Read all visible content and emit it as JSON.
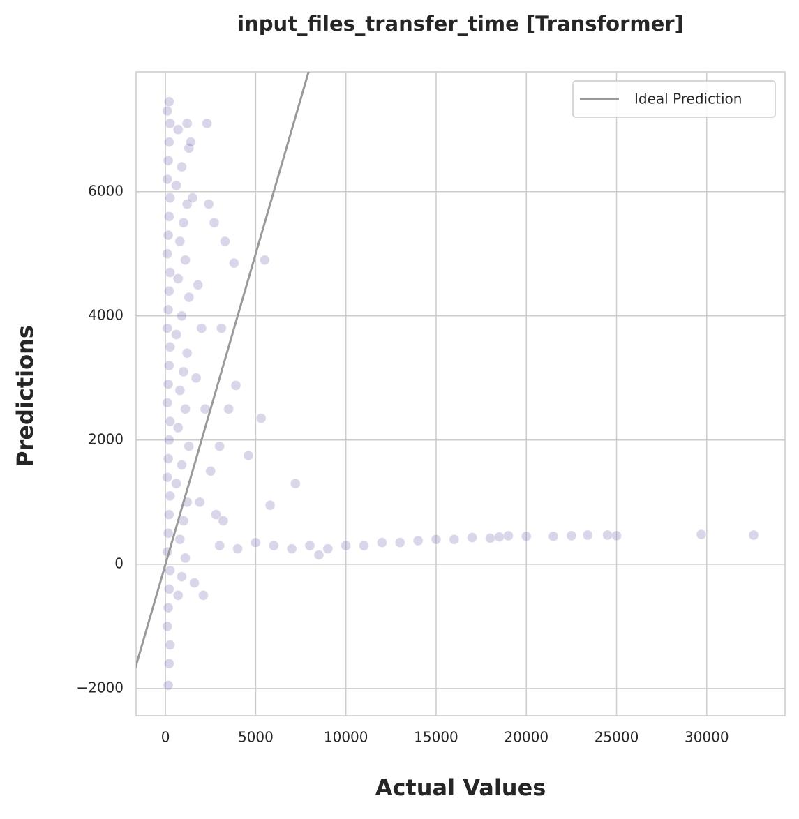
{
  "chart_data": {
    "type": "scatter",
    "title": "input_files_transfer_time [Transformer]",
    "x_label": "Actual Values",
    "y_label": "Predictions",
    "xlim": [
      -1630,
      34340
    ],
    "ylim": [
      -2440,
      7930
    ],
    "xticks": [
      0,
      5000,
      10000,
      15000,
      20000,
      25000,
      30000
    ],
    "yticks": [
      {
        "value": -2000,
        "label": "−2000"
      },
      0,
      2000,
      4000,
      6000
    ],
    "grid": true,
    "legend": "upper right",
    "reference_line": {
      "name": "Ideal Prediction",
      "color": "#999999"
    },
    "series": [
      {
        "color": "#7b68b0",
        "x": [
          150,
          200,
          250,
          100,
          150,
          200,
          250,
          100,
          150,
          200,
          250,
          100,
          150,
          200,
          250,
          100,
          150,
          200,
          250,
          100,
          150,
          200,
          250,
          100,
          150,
          200,
          250,
          100,
          150,
          200,
          250,
          100,
          200,
          700,
          900,
          1100,
          800,
          1000,
          1200,
          600,
          900,
          1300,
          700,
          1100,
          800,
          1000,
          1200,
          600,
          900,
          1300,
          700,
          1100,
          800,
          1000,
          1200,
          600,
          900,
          1300,
          700,
          1500,
          1800,
          2000,
          1700,
          2200,
          2500,
          1900,
          2800,
          1600,
          2100,
          2400,
          2700,
          3300,
          3100,
          3500,
          3000,
          3200,
          1400,
          1200,
          5500,
          7200,
          5800,
          4600,
          5300,
          3900,
          3800,
          2300,
          3000,
          4000,
          5000,
          6000,
          7000,
          8000,
          8500,
          9000,
          10000,
          11000,
          12000,
          13000,
          14000,
          15000,
          16000,
          17000,
          18000,
          18500,
          19000,
          20000,
          21500,
          22500,
          23400,
          24500,
          25000,
          29700,
          32600
        ],
        "values": [
          -1950,
          -1600,
          -1300,
          -1000,
          -700,
          -400,
          -100,
          200,
          500,
          800,
          1100,
          1400,
          1700,
          2000,
          2300,
          2600,
          2900,
          3200,
          3500,
          3800,
          4100,
          4400,
          4700,
          5000,
          5300,
          5600,
          5900,
          6200,
          6500,
          6800,
          7100,
          7300,
          7450,
          -500,
          -200,
          100,
          400,
          700,
          1000,
          1300,
          1600,
          1900,
          2200,
          2500,
          2800,
          3100,
          3400,
          3700,
          4000,
          4300,
          4600,
          4900,
          5200,
          5500,
          5800,
          6100,
          6400,
          6700,
          7000,
          5900,
          4500,
          3800,
          3000,
          2500,
          1500,
          1000,
          800,
          -300,
          -500,
          5800,
          5500,
          5200,
          3800,
          2500,
          1900,
          700,
          6800,
          7100,
          4900,
          1300,
          950,
          1750,
          2350,
          2880,
          4850,
          7100,
          300,
          250,
          350,
          300,
          250,
          300,
          150,
          250,
          300,
          300,
          350,
          350,
          380,
          400,
          400,
          430,
          420,
          440,
          460,
          450,
          450,
          460,
          470,
          470,
          460,
          480,
          470
        ]
      }
    ]
  }
}
